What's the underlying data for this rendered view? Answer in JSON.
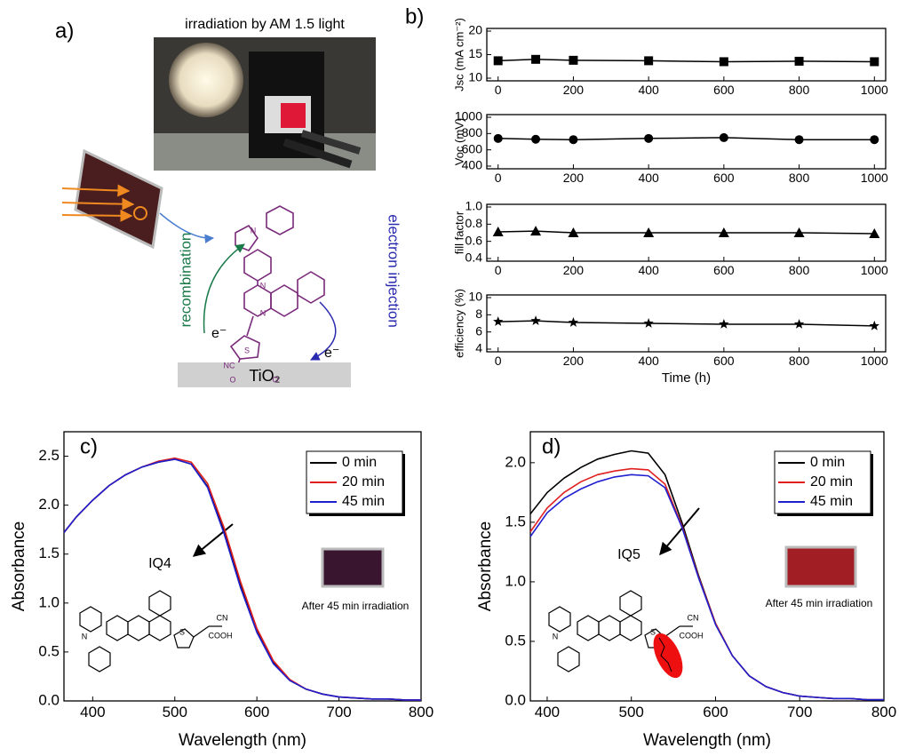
{
  "panel_a": {
    "label": "a)",
    "caption": "irradiation by AM 1.5 light",
    "recombination": "recombination",
    "injection": "electron injection",
    "electron_left": "e⁻",
    "electron_right": "e⁻",
    "substrate": "TiO₂",
    "atoms": [
      "N",
      "N",
      "N",
      "S",
      "NC",
      "O",
      "O"
    ]
  },
  "chart_data": [
    {
      "type": "line",
      "panel_label": "b)",
      "ylabel": "Jsc (mA cm⁻²)",
      "marker": "square",
      "color": "#000000",
      "x": [
        0,
        100,
        200,
        400,
        600,
        800,
        1000
      ],
      "values": [
        13.7,
        14.0,
        13.8,
        13.7,
        13.5,
        13.6,
        13.5
      ],
      "xlim": [
        -30,
        1030
      ],
      "xticks": [
        0,
        200,
        400,
        600,
        800,
        1000
      ],
      "ylim": [
        10,
        20
      ],
      "yticks": [
        10,
        15,
        20
      ]
    },
    {
      "type": "line",
      "ylabel": "Voc (mV)",
      "marker": "circle",
      "color": "#000000",
      "x": [
        0,
        100,
        200,
        400,
        600,
        800,
        1000
      ],
      "values": [
        740,
        730,
        725,
        740,
        750,
        725,
        725
      ],
      "xlim": [
        -30,
        1030
      ],
      "xticks": [
        0,
        200,
        400,
        600,
        800,
        1000
      ],
      "ylim": [
        400,
        1000
      ],
      "yticks": [
        400,
        600,
        800,
        1000
      ]
    },
    {
      "type": "line",
      "ylabel": "fill factor",
      "marker": "triangle",
      "color": "#000000",
      "x": [
        0,
        100,
        200,
        400,
        600,
        800,
        1000
      ],
      "values": [
        0.71,
        0.72,
        0.7,
        0.7,
        0.7,
        0.7,
        0.69
      ],
      "xlim": [
        -30,
        1030
      ],
      "xticks": [
        0,
        200,
        400,
        600,
        800,
        1000
      ],
      "ylim": [
        0.4,
        1.0
      ],
      "yticks": [
        0.4,
        0.6,
        0.8,
        {
          "value": 1,
          "label": "1.0"
        }
      ]
    },
    {
      "type": "line",
      "ylabel": "efficiency (%)",
      "xlabel": "Time (h)",
      "marker": "star",
      "color": "#000000",
      "x": [
        0,
        100,
        200,
        400,
        600,
        800,
        1000
      ],
      "values": [
        7.2,
        7.3,
        7.1,
        7.0,
        6.9,
        6.9,
        6.7
      ],
      "xlim": [
        -30,
        1030
      ],
      "xticks": [
        0,
        200,
        400,
        600,
        800,
        1000
      ],
      "ylim": [
        4,
        10
      ],
      "yticks": [
        4,
        6,
        8,
        10
      ]
    },
    {
      "type": "line",
      "panel_label": "c)",
      "xlabel": "Wavelength (nm)",
      "ylabel": "Absorbance",
      "annotations": [
        "IQ4",
        "After 45 min irradiation",
        "CN",
        "COOH",
        "N",
        "S"
      ],
      "x": [
        365,
        380,
        400,
        420,
        440,
        460,
        480,
        500,
        520,
        540,
        560,
        580,
        600,
        620,
        640,
        660,
        680,
        700,
        720,
        740,
        760,
        780,
        800
      ],
      "series": [
        {
          "name": "0 min",
          "color": "#000000",
          "values": [
            1.72,
            1.88,
            2.05,
            2.2,
            2.31,
            2.39,
            2.44,
            2.47,
            2.42,
            2.19,
            1.73,
            1.18,
            0.71,
            0.39,
            0.21,
            0.12,
            0.07,
            0.04,
            0.03,
            0.02,
            0.02,
            0.01,
            0.01
          ]
        },
        {
          "name": "20 min",
          "color": "#e02020",
          "values": [
            1.72,
            1.88,
            2.05,
            2.2,
            2.31,
            2.39,
            2.45,
            2.48,
            2.44,
            2.22,
            1.77,
            1.22,
            0.74,
            0.41,
            0.22,
            0.12,
            0.07,
            0.04,
            0.03,
            0.02,
            0.02,
            0.01,
            0.01
          ]
        },
        {
          "name": "45 min",
          "color": "#1f1fd0",
          "values": [
            1.72,
            1.88,
            2.05,
            2.2,
            2.31,
            2.39,
            2.44,
            2.47,
            2.42,
            2.18,
            1.71,
            1.16,
            0.7,
            0.38,
            0.21,
            0.12,
            0.07,
            0.04,
            0.03,
            0.02,
            0.02,
            0.01,
            0.01
          ]
        }
      ],
      "xlim": [
        365,
        800
      ],
      "xticks": [
        400,
        500,
        600,
        700,
        800
      ],
      "ylim": [
        0,
        2.75
      ],
      "yticks": [
        {
          "value": 0,
          "label": "0.0"
        },
        0.5,
        {
          "value": 1,
          "label": "1.0"
        },
        1.5,
        {
          "value": 2,
          "label": "2.0"
        },
        2.5
      ]
    },
    {
      "type": "line",
      "panel_label": "d)",
      "xlabel": "Wavelength (nm)",
      "ylabel": "Absorbance",
      "annotations": [
        "IQ5",
        "After 45 min irradiation",
        "CN",
        "COOH",
        "N",
        "S"
      ],
      "x": [
        380,
        400,
        420,
        440,
        460,
        480,
        500,
        520,
        540,
        560,
        580,
        600,
        620,
        640,
        660,
        680,
        700,
        720,
        740,
        760,
        780,
        800
      ],
      "series": [
        {
          "name": "0 min",
          "color": "#000000",
          "values": [
            1.57,
            1.75,
            1.87,
            1.96,
            2.03,
            2.07,
            2.1,
            2.08,
            1.9,
            1.5,
            1.05,
            0.65,
            0.38,
            0.21,
            0.12,
            0.07,
            0.04,
            0.03,
            0.02,
            0.02,
            0.01,
            0.01
          ]
        },
        {
          "name": "20 min",
          "color": "#e02020",
          "values": [
            1.42,
            1.62,
            1.75,
            1.84,
            1.9,
            1.93,
            1.95,
            1.94,
            1.82,
            1.47,
            1.04,
            0.65,
            0.38,
            0.21,
            0.12,
            0.07,
            0.04,
            0.03,
            0.02,
            0.02,
            0.01,
            0.01
          ]
        },
        {
          "name": "45 min",
          "color": "#1f1fd0",
          "values": [
            1.38,
            1.58,
            1.7,
            1.78,
            1.84,
            1.88,
            1.9,
            1.89,
            1.79,
            1.46,
            1.03,
            0.64,
            0.38,
            0.21,
            0.12,
            0.07,
            0.04,
            0.03,
            0.02,
            0.02,
            0.01,
            0.01
          ]
        }
      ],
      "xlim": [
        380,
        800
      ],
      "xticks": [
        400,
        500,
        600,
        700,
        800
      ],
      "ylim": [
        0,
        2.26
      ],
      "yticks": [
        {
          "value": 0,
          "label": "0.0"
        },
        0.5,
        {
          "value": 1,
          "label": "1.0"
        },
        1.5,
        {
          "value": 2,
          "label": "2.0"
        }
      ]
    }
  ]
}
